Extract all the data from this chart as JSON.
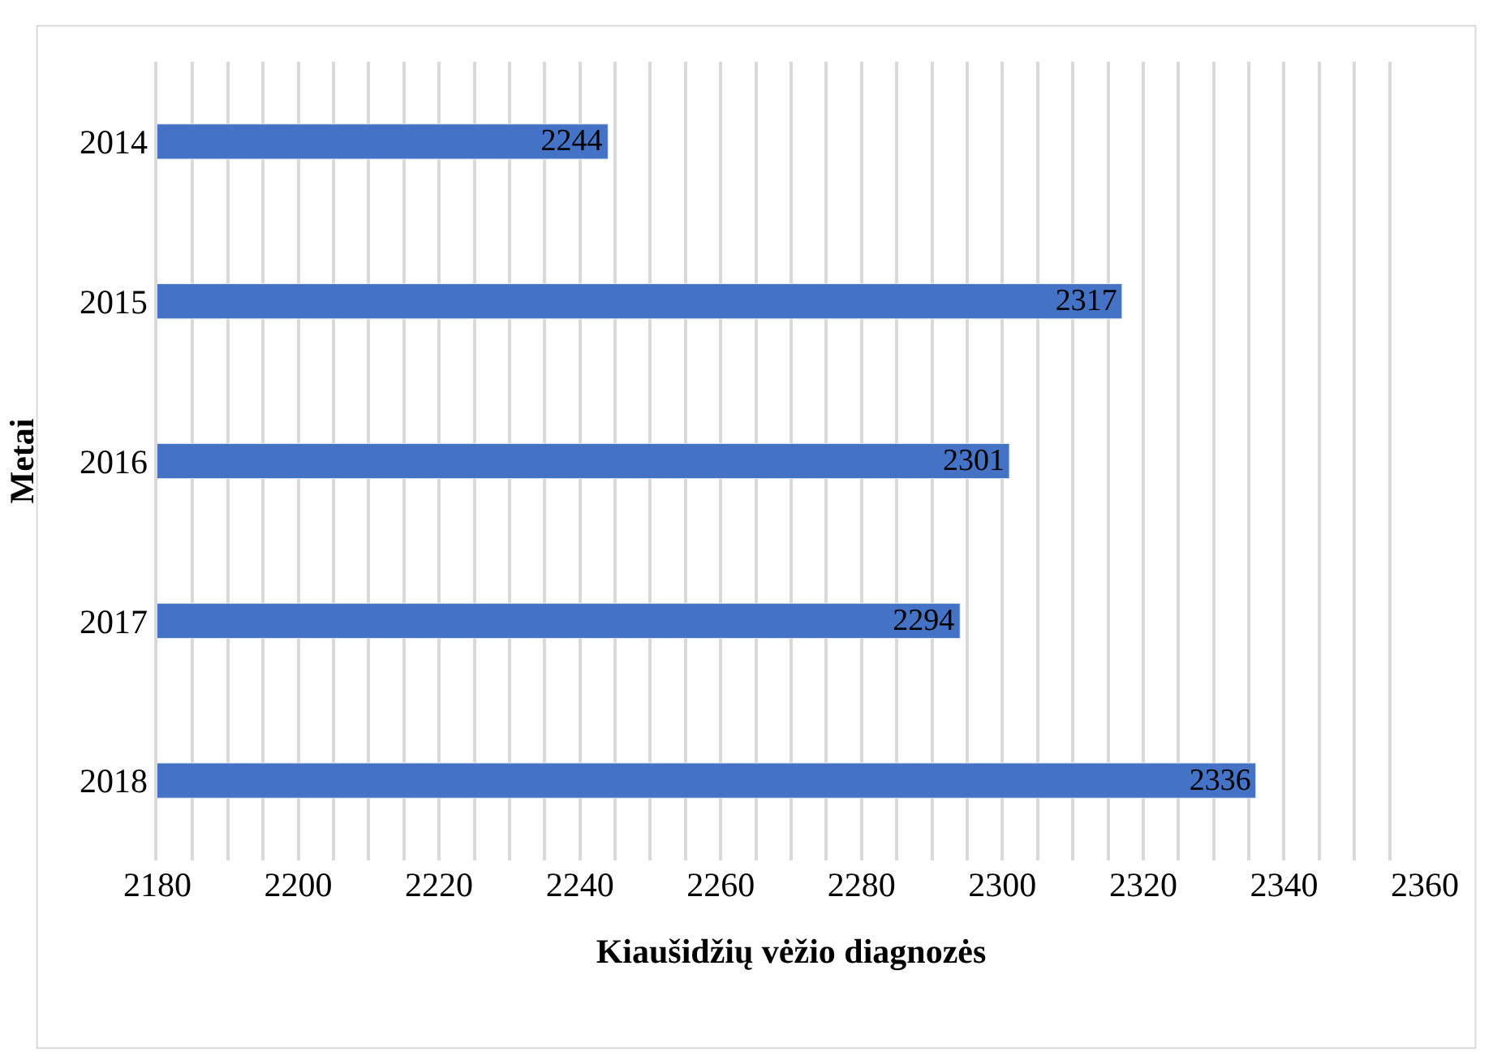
{
  "chart_data": {
    "type": "bar",
    "orientation": "horizontal",
    "xlabel": "Kiaušidžių vėžio diagnozės",
    "ylabel": "Metai",
    "categories": [
      "2014",
      "2015",
      "2016",
      "2017",
      "2018"
    ],
    "values": [
      2244,
      2317,
      2301,
      2294,
      2336
    ],
    "color": "#4472c4",
    "data_labels": true,
    "grid": "x",
    "xlim": [
      2180,
      2360
    ],
    "xticks": [
      2180,
      {
        "value": 2185,
        "label": null
      },
      {
        "value": 2190,
        "label": null
      },
      {
        "value": 2195,
        "label": null
      },
      2200,
      {
        "value": 2205,
        "label": null
      },
      {
        "value": 2210,
        "label": null
      },
      {
        "value": 2215,
        "label": null
      },
      2220,
      {
        "value": 2225,
        "label": null
      },
      {
        "value": 2230,
        "label": null
      },
      {
        "value": 2235,
        "label": null
      },
      2240,
      {
        "value": 2245,
        "label": null
      },
      {
        "value": 2250,
        "label": null
      },
      {
        "value": 2255,
        "label": null
      },
      2260,
      {
        "value": 2265,
        "label": null
      },
      {
        "value": 2270,
        "label": null
      },
      {
        "value": 2275,
        "label": null
      },
      2280,
      {
        "value": 2285,
        "label": null
      },
      {
        "value": 2290,
        "label": null
      },
      {
        "value": 2295,
        "label": null
      },
      2300,
      {
        "value": 2305,
        "label": null
      },
      {
        "value": 2310,
        "label": null
      },
      {
        "value": 2315,
        "label": null
      },
      2320,
      {
        "value": 2325,
        "label": null
      },
      {
        "value": 2330,
        "label": null
      },
      {
        "value": 2335,
        "label": null
      },
      2340,
      {
        "value": 2345,
        "label": null
      },
      {
        "value": 2350,
        "label": null
      },
      {
        "value": 2355,
        "label": null
      },
      2360
    ]
  }
}
